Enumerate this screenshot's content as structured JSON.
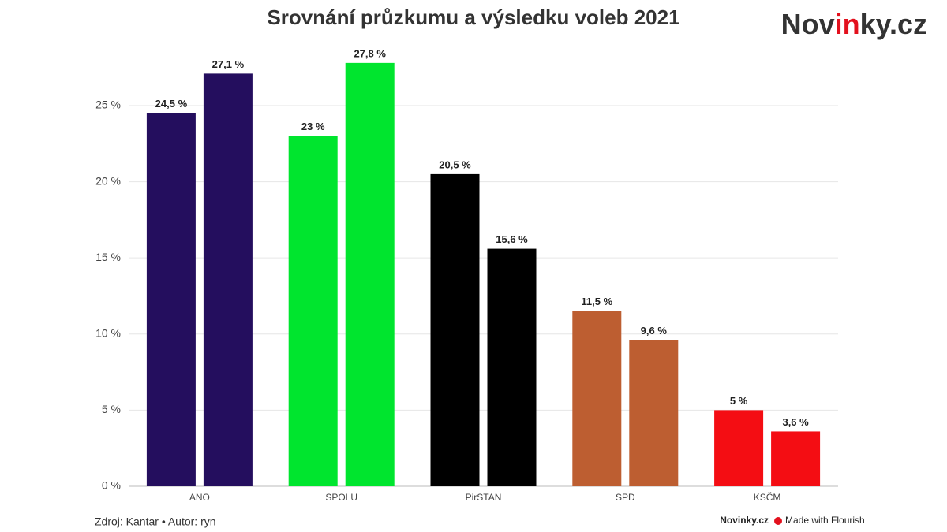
{
  "chart_data": {
    "type": "bar",
    "title": "Srovnání průzkumu a výsledku voleb 2021",
    "categories": [
      "ANO",
      "SPOLU",
      "PirSTAN",
      "SPD",
      "KSČM"
    ],
    "colors": [
      "#240e5e",
      "#00e52e",
      "#000000",
      "#bd5e31",
      "#f40d13"
    ],
    "series": [
      {
        "values": [
          24.5,
          23,
          20.5,
          11.5,
          5
        ],
        "value_labels": [
          "24,5 %",
          "23 %",
          "20,5 %",
          "11,5 %",
          "5 %"
        ]
      },
      {
        "values": [
          27.1,
          27.8,
          15.6,
          9.6,
          3.6
        ],
        "value_labels": [
          "27,1 %",
          "27,8 %",
          "15,6 %",
          "9,6 %",
          "3,6 %"
        ]
      }
    ],
    "ylim": [
      0,
      28
    ],
    "yticks": [
      {
        "value": 0,
        "label": "0 %"
      },
      {
        "value": 5,
        "label": "5 %"
      },
      {
        "value": 10,
        "label": "10 %"
      },
      {
        "value": 15,
        "label": "15 %"
      },
      {
        "value": 20,
        "label": "20 %"
      },
      {
        "value": 25,
        "label": "25 %"
      }
    ],
    "grid": true,
    "source": "Zdroj: Kantar • Autor: ryn"
  },
  "branding": {
    "logo": [
      "Nov",
      "in",
      "ky.cz"
    ],
    "footer_logo": "Novinky.cz",
    "footer_credit": "Made with Flourish"
  }
}
